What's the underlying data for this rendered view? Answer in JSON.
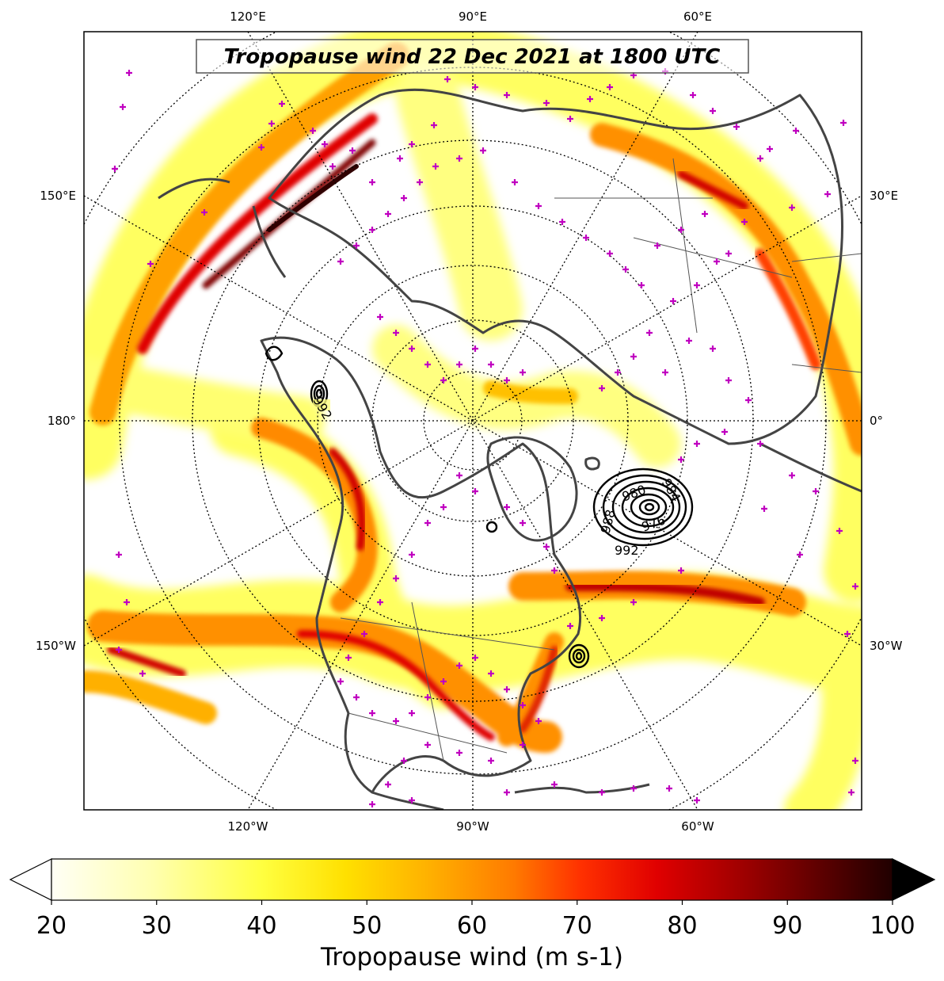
{
  "map": {
    "title": "Tropopause wind 22 Dec 2021 at 1800 UTC",
    "projection": "north-polar-stereographic",
    "field": "tropopause wind speed",
    "contour_field": "mean sea level pressure lows (hPa)"
  },
  "longitude_labels": {
    "top": [
      "120°E",
      "90°E",
      "60°E"
    ],
    "bottom": [
      "120°W",
      "90°W",
      "60°W"
    ],
    "left": [
      "150°E",
      "180°",
      "150°W"
    ],
    "right": [
      "30°E",
      "0°",
      "30°W"
    ]
  },
  "colorbar": {
    "label": "Tropopause wind (m s-1)",
    "ticks": [
      "20",
      "30",
      "40",
      "50",
      "60",
      "70",
      "80",
      "90",
      "100"
    ],
    "min": 20,
    "max": 100,
    "extend": "both",
    "colormap": "hot_r",
    "colors": [
      "#fffff6",
      "#ffffb0",
      "#ffff40",
      "#ffe000",
      "#ffb000",
      "#ff7a00",
      "#ff3000",
      "#e00000",
      "#a00000",
      "#600000",
      "#200000"
    ]
  },
  "contour_labels": [
    "992",
    "980",
    "984",
    "988",
    "976",
    "992",
    "992"
  ],
  "station_marker_color": "#c000c0",
  "coastline_color": "#444444"
}
